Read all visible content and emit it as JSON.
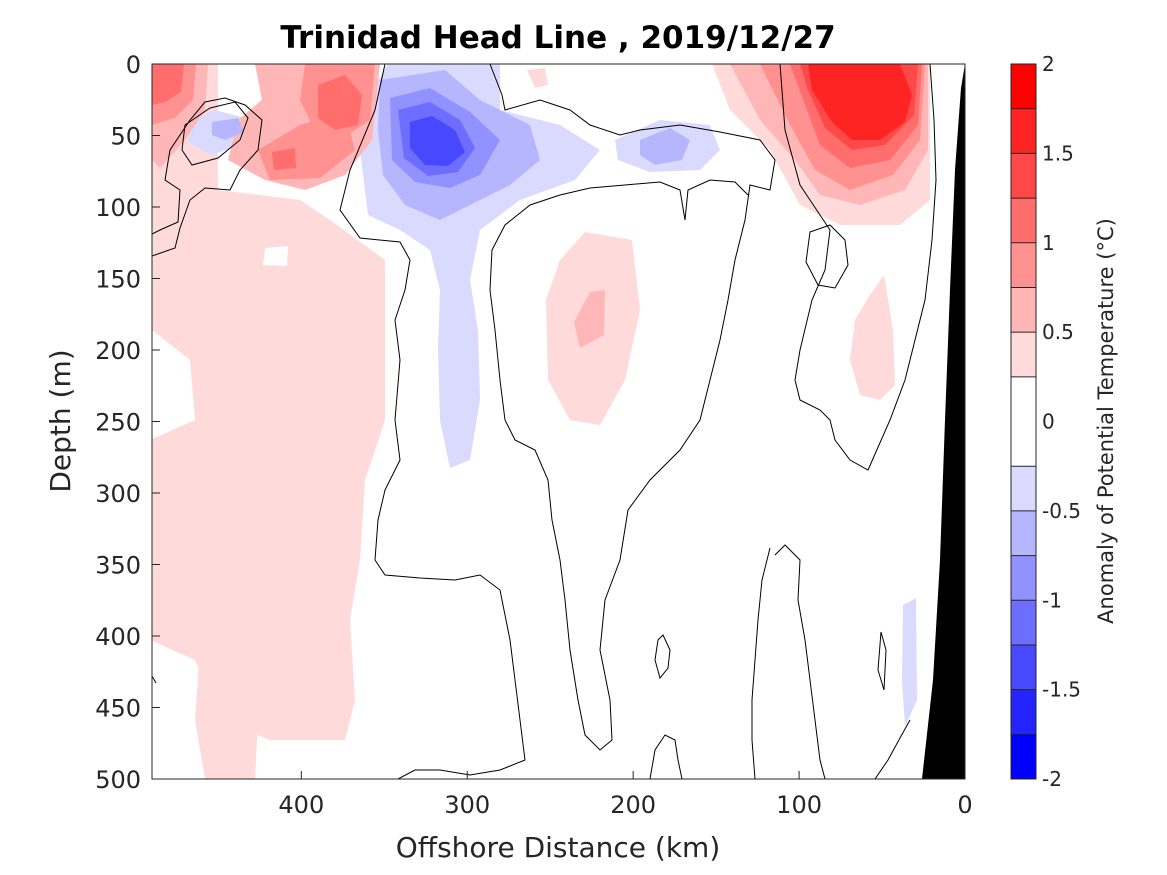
{
  "chart_data": {
    "type": "heatmap",
    "subtype": "filled-contour section",
    "title": "Trinidad Head Line , 2019/12/27",
    "xlabel": "Offshore Distance (km)",
    "ylabel": "Depth (m)",
    "xlim": [
      490,
      0
    ],
    "x_reversed": true,
    "ylim": [
      0,
      500
    ],
    "y_reversed": true,
    "xticks": [
      400,
      300,
      200,
      100,
      0
    ],
    "xtick_labels": [
      "400",
      "300",
      "200",
      "100",
      "0"
    ],
    "yticks": [
      0,
      50,
      100,
      150,
      200,
      250,
      300,
      350,
      400,
      450,
      500
    ],
    "ytick_labels": [
      "0",
      "50",
      "100",
      "150",
      "200",
      "250",
      "300",
      "350",
      "400",
      "450",
      "500"
    ],
    "grid": false,
    "colorbar": {
      "label": "Anomaly of Potential Temperature (°C)",
      "range": [
        -2,
        2
      ],
      "ticks": [
        2,
        1.5,
        1,
        0.5,
        0,
        -0.5,
        -1,
        -1.5,
        -2
      ],
      "tick_labels": [
        "2",
        "1.5",
        "1",
        "0.5",
        "0",
        "-0.5",
        "-1",
        "-1.5",
        "-2"
      ],
      "levels": [
        -2,
        -1.75,
        -1.5,
        -1.25,
        -1,
        -0.75,
        -0.5,
        -0.25,
        0.25,
        0.5,
        0.75,
        1,
        1.25,
        1.5,
        1.75,
        2
      ],
      "colors": [
        "#0000ff",
        "#2424ff",
        "#4848ff",
        "#6d6dff",
        "#9191ff",
        "#b6b6ff",
        "#dadaff",
        "#ffffff",
        "#ffdada",
        "#ffb6b6",
        "#ff9191",
        "#ff6d6d",
        "#ff4848",
        "#ff2424",
        "#ff0000"
      ],
      "placement": "right"
    },
    "zero_contour_color": "#000000",
    "land_mask_color": "#000000",
    "features": [
      {
        "kind": "warm",
        "x": 470,
        "depth": 30,
        "anomaly": 1.2
      },
      {
        "kind": "warm",
        "x": 375,
        "depth": 30,
        "anomaly": 1.4
      },
      {
        "kind": "warm",
        "x": 410,
        "depth": 70,
        "anomaly": 1.2
      },
      {
        "kind": "cool",
        "x": 445,
        "depth": 42,
        "anomaly": -0.6
      },
      {
        "kind": "cool",
        "x": 320,
        "depth": 55,
        "anomaly": -1.6
      },
      {
        "kind": "cool",
        "x": 300,
        "depth": 250,
        "anomaly": -0.3
      },
      {
        "kind": "cool",
        "x": 185,
        "depth": 58,
        "anomaly": -0.8
      },
      {
        "kind": "warm",
        "x": 245,
        "depth": 15,
        "anomaly": 0.3
      },
      {
        "kind": "warm",
        "x": 225,
        "depth": 180,
        "anomaly": 0.7
      },
      {
        "kind": "warm",
        "x": 65,
        "depth": 30,
        "anomaly": 1.9
      },
      {
        "kind": "warm",
        "x": 60,
        "depth": 215,
        "anomaly": 0.4
      },
      {
        "kind": "warm",
        "x": 400,
        "depth": 320,
        "anomaly": 0.3
      },
      {
        "kind": "cool",
        "x": 30,
        "depth": 430,
        "anomaly": -0.3
      }
    ]
  }
}
